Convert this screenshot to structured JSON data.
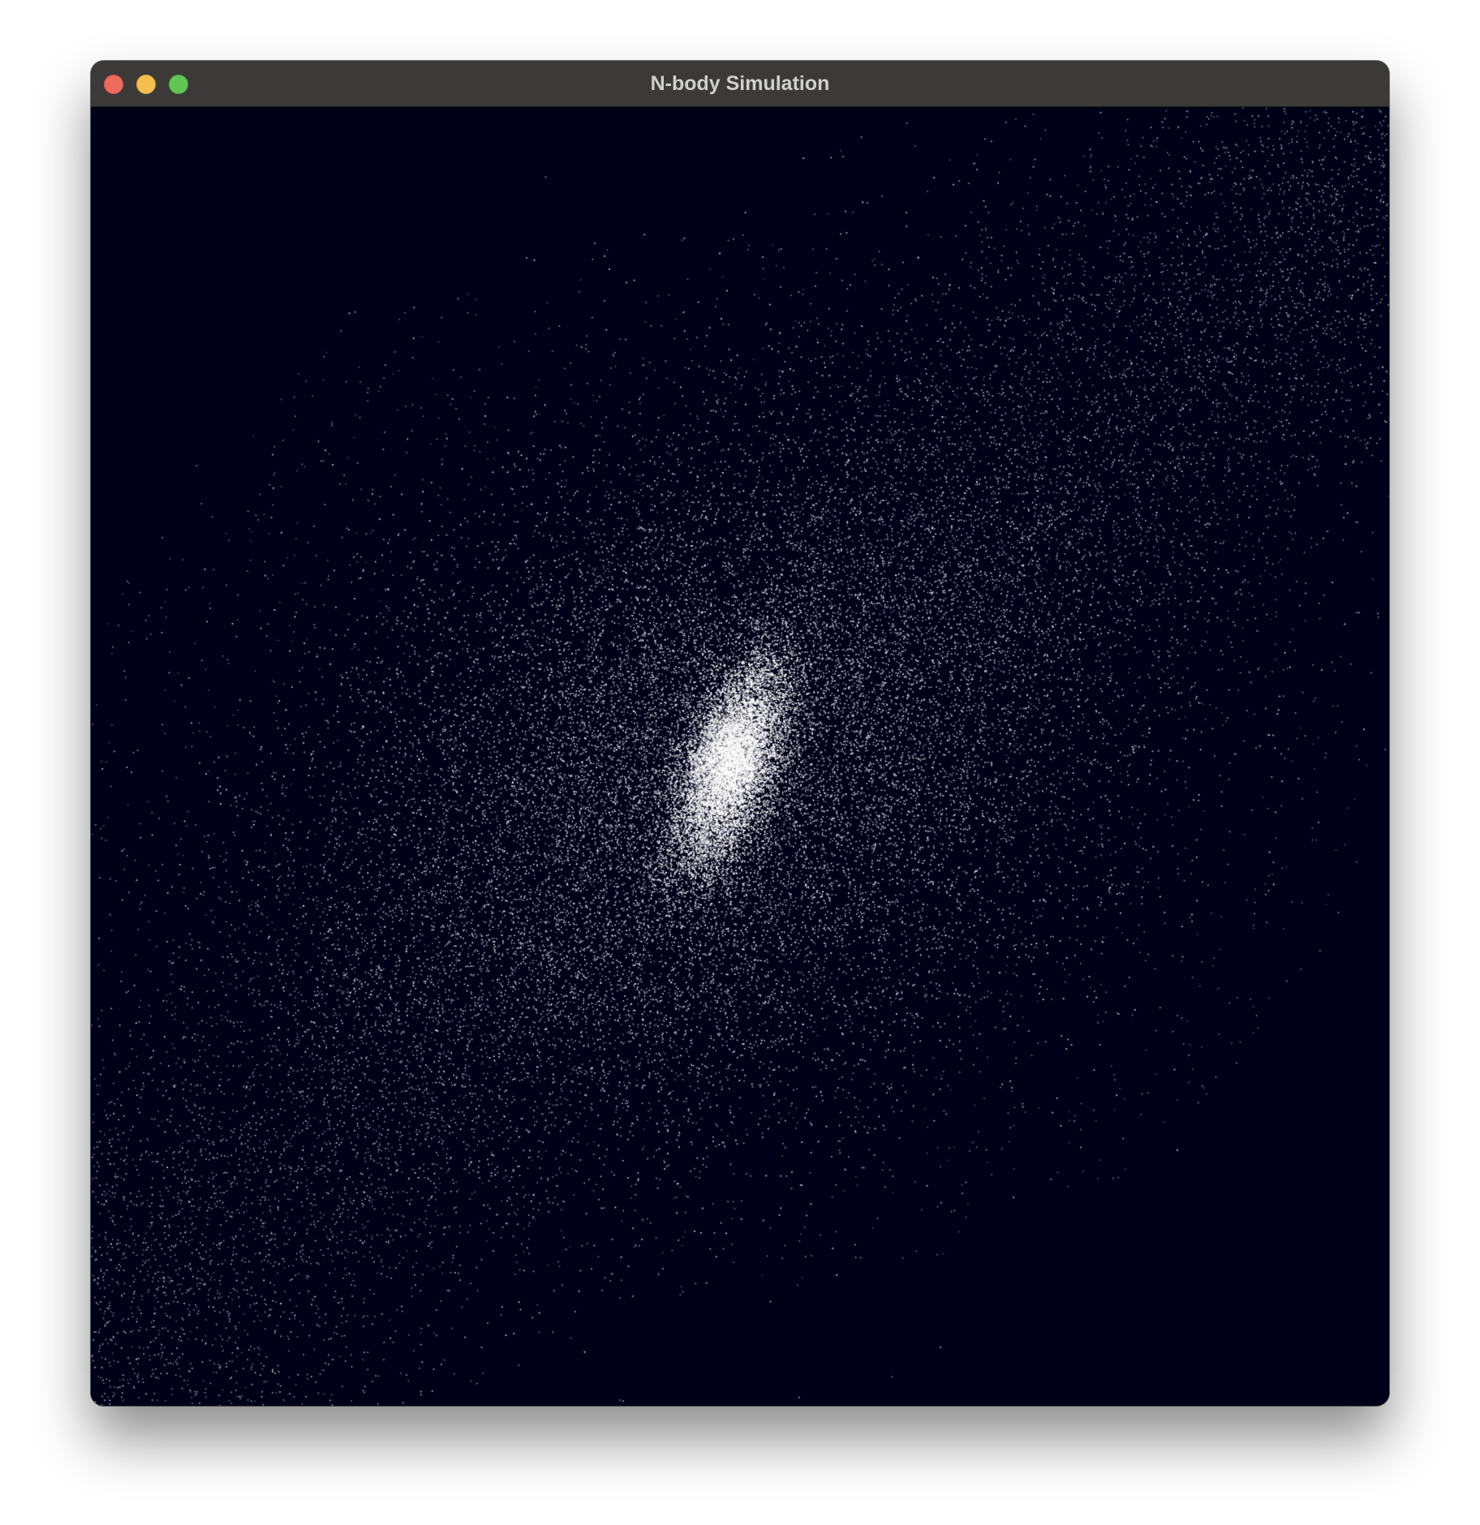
{
  "window": {
    "title": "N-body Simulation",
    "controls": [
      "close-icon",
      "minimize-icon",
      "zoom-icon"
    ]
  },
  "simulation": {
    "background_color": "#000119",
    "particle_color": "#ffffff",
    "structure": "barred spiral galaxy with dense bright core and diagonal arm band"
  },
  "colors": {
    "titlebar": "#3b3a38",
    "title_text": "#cfcfcf",
    "close": "#ed6a5e",
    "minimize": "#f5bf4f",
    "zoom": "#61c554"
  }
}
